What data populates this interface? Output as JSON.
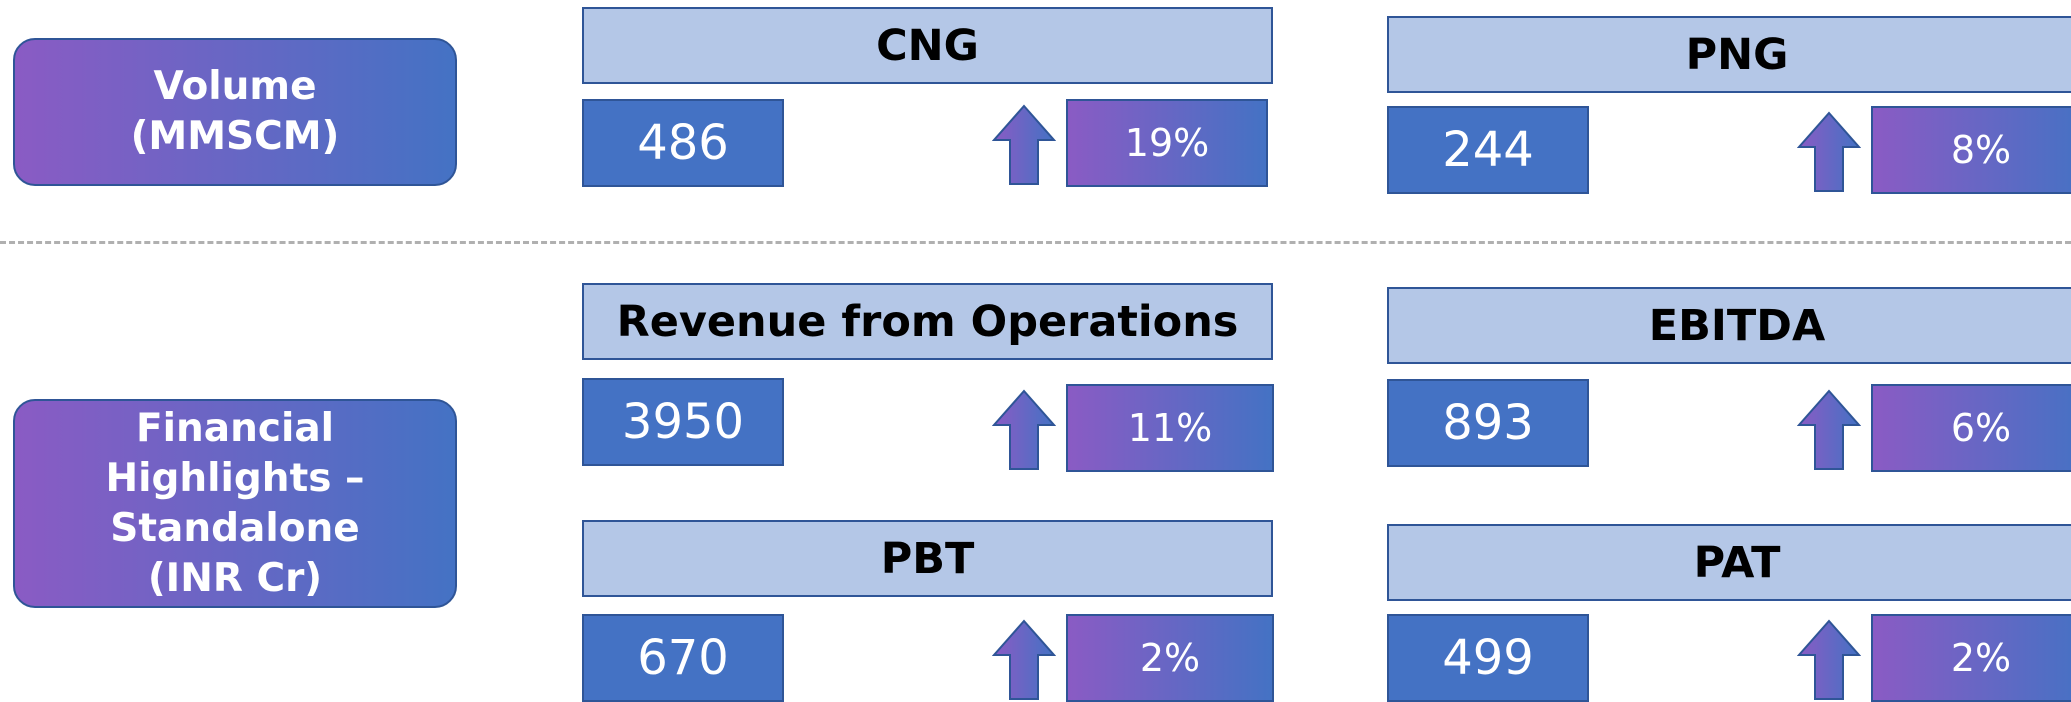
{
  "sections": [
    {
      "label": "Volume (MMSCM)",
      "cards": [
        {
          "title": "CNG",
          "value": "486",
          "change": "19%"
        },
        {
          "title": "PNG",
          "value": "244",
          "change": "8%"
        }
      ]
    },
    {
      "label": "Financial Highlights – Standalone (INR Cr)",
      "cards": [
        {
          "title": "Revenue from Operations",
          "value": "3950",
          "change": "11%"
        },
        {
          "title": "EBITDA",
          "value": "893",
          "change": "6%"
        },
        {
          "title": "PBT",
          "value": "670",
          "change": "2%"
        },
        {
          "title": "PAT",
          "value": "499",
          "change": "2%"
        }
      ]
    }
  ]
}
